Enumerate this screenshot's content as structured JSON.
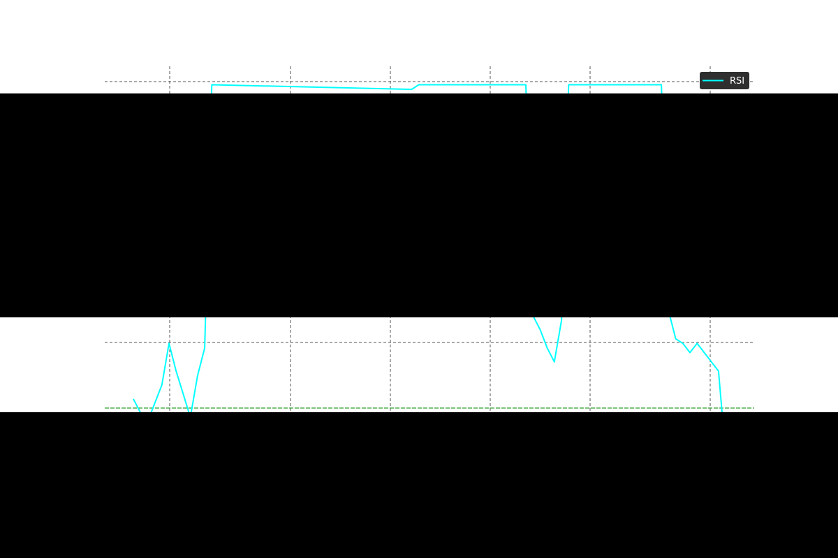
{
  "chart_data": {
    "type": "line",
    "series": [
      {
        "name": "RSI",
        "color": "#00ffff",
        "values": [
          {
            "x": 1,
            "y": 32
          },
          {
            "x": 2,
            "y": 29
          },
          {
            "x": 3,
            "y": 27
          },
          {
            "x": 4,
            "y": 31
          },
          {
            "x": 5,
            "y": 35
          },
          {
            "x": 6,
            "y": 44
          },
          {
            "x": 7,
            "y": 38
          },
          {
            "x": 8,
            "y": 33
          },
          {
            "x": 9,
            "y": 28
          },
          {
            "x": 10,
            "y": 37
          },
          {
            "x": 11,
            "y": 43
          },
          {
            "x": 12,
            "y": 100
          },
          {
            "x": 40,
            "y": 99
          },
          {
            "x": 41,
            "y": 100
          },
          {
            "x": 42,
            "y": 100
          },
          {
            "x": 56,
            "y": 100
          },
          {
            "x": 57,
            "y": 50
          },
          {
            "x": 58,
            "y": 47
          },
          {
            "x": 59,
            "y": 43
          },
          {
            "x": 60,
            "y": 40
          },
          {
            "x": 61,
            "y": 49
          },
          {
            "x": 62,
            "y": 100
          },
          {
            "x": 75,
            "y": 100
          },
          {
            "x": 76,
            "y": 51
          },
          {
            "x": 77,
            "y": 45
          },
          {
            "x": 78,
            "y": 44
          },
          {
            "x": 79,
            "y": 42
          },
          {
            "x": 80,
            "y": 44
          },
          {
            "x": 81,
            "y": 42
          },
          {
            "x": 82,
            "y": 40
          },
          {
            "x": 83,
            "y": 38
          },
          {
            "x": 84,
            "y": 20
          }
        ]
      }
    ],
    "reference_line": {
      "y": 30,
      "color": "#2ca02c"
    },
    "grid": true,
    "legend": "top-right",
    "xlim": [
      -3,
      88
    ],
    "ylim": [
      30,
      104
    ]
  },
  "legend": {
    "label": "RSI",
    "bg_color": "#2f2f2f",
    "text_color": "#ffffff"
  },
  "colors": {
    "redaction": "#000000",
    "grid": "#555555"
  }
}
